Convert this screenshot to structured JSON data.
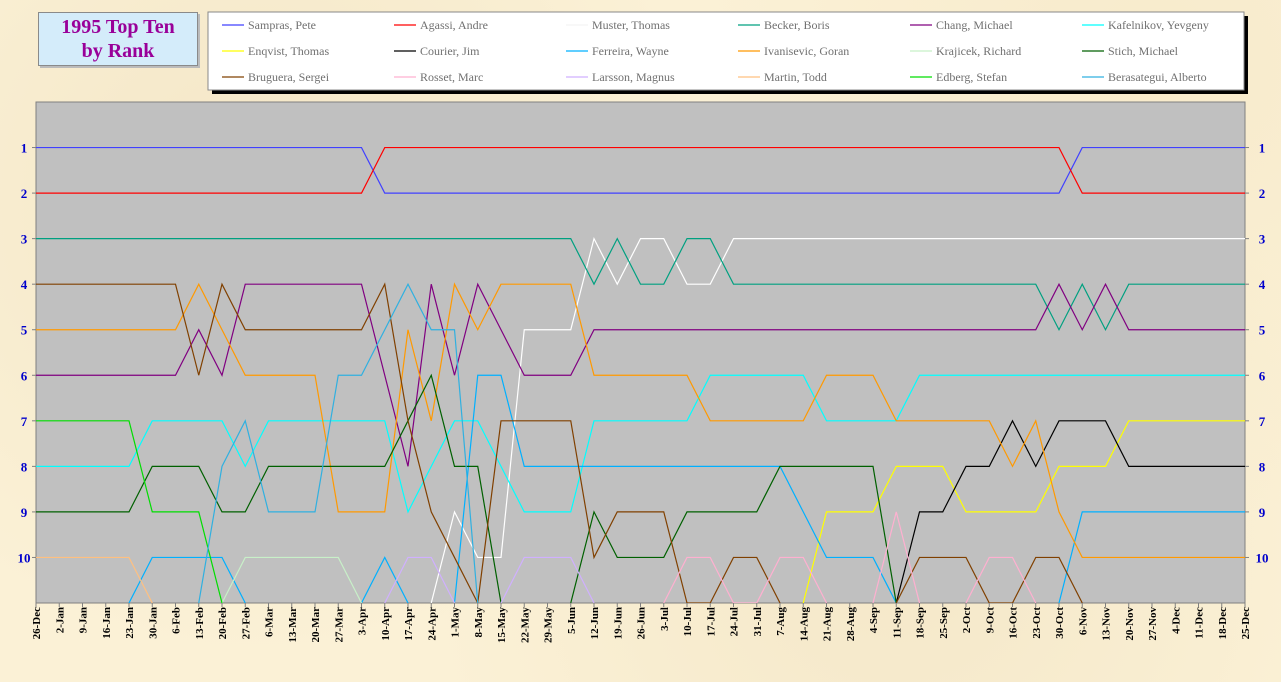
{
  "chart_data": {
    "type": "line",
    "title": "1995 Top Ten by Rank",
    "categories": [
      "26-Dec",
      "2-Jan",
      "9-Jan",
      "16-Jan",
      "23-Jan",
      "30-Jan",
      "6-Feb",
      "13-Feb",
      "20-Feb",
      "27-Feb",
      "6-Mar",
      "13-Mar",
      "20-Mar",
      "27-Mar",
      "3-Apr",
      "10-Apr",
      "17-Apr",
      "24-Apr",
      "1-May",
      "8-May",
      "15-May",
      "22-May",
      "29-May",
      "5-Jun",
      "12-Jun",
      "19-Jun",
      "26-Jun",
      "3-Jul",
      "10-Jul",
      "17-Jul",
      "24-Jul",
      "31-Jul",
      "7-Aug",
      "14-Aug",
      "21-Aug",
      "28-Aug",
      "4-Sep",
      "11-Sep",
      "18-Sep",
      "25-Sep",
      "2-Oct",
      "9-Oct",
      "16-Oct",
      "23-Oct",
      "30-Oct",
      "6-Nov",
      "13-Nov",
      "20-Nov",
      "27-Nov",
      "4-Dec",
      "11-Dec",
      "18-Dec",
      "25-Dec"
    ],
    "ylim": [
      0,
      11
    ],
    "y_inverted": true,
    "yticks": [
      1,
      2,
      3,
      4,
      5,
      6,
      7,
      8,
      9,
      10
    ],
    "series": [
      {
        "name": "Sampras, Pete",
        "color": "#4040ff",
        "values": [
          1,
          1,
          1,
          1,
          1,
          1,
          1,
          1,
          1,
          1,
          1,
          1,
          1,
          1,
          1,
          2,
          2,
          2,
          2,
          2,
          2,
          2,
          2,
          2,
          2,
          2,
          2,
          2,
          2,
          2,
          2,
          2,
          2,
          2,
          2,
          2,
          2,
          2,
          2,
          2,
          2,
          2,
          2,
          2,
          2,
          1,
          1,
          1,
          1,
          1,
          1,
          1,
          1
        ]
      },
      {
        "name": "Agassi, Andre",
        "color": "#ff0000",
        "values": [
          2,
          2,
          2,
          2,
          2,
          2,
          2,
          2,
          2,
          2,
          2,
          2,
          2,
          2,
          2,
          1,
          1,
          1,
          1,
          1,
          1,
          1,
          1,
          1,
          1,
          1,
          1,
          1,
          1,
          1,
          1,
          1,
          1,
          1,
          1,
          1,
          1,
          1,
          1,
          1,
          1,
          1,
          1,
          1,
          1,
          2,
          2,
          2,
          2,
          2,
          2,
          2,
          2
        ]
      },
      {
        "name": "Muster, Thomas",
        "color": "#ffffff",
        "values": [
          null,
          null,
          null,
          null,
          null,
          null,
          null,
          null,
          null,
          null,
          null,
          null,
          null,
          null,
          null,
          null,
          null,
          11,
          9,
          10,
          10,
          5,
          5,
          5,
          3,
          4,
          3,
          3,
          4,
          4,
          3,
          3,
          3,
          3,
          3,
          3,
          3,
          3,
          3,
          3,
          3,
          3,
          3,
          3,
          3,
          3,
          3,
          3,
          3,
          3,
          3,
          3,
          3
        ]
      },
      {
        "name": "Becker, Boris",
        "color": "#00a080",
        "values": [
          3,
          3,
          3,
          3,
          3,
          3,
          3,
          3,
          3,
          3,
          3,
          3,
          3,
          3,
          3,
          3,
          3,
          3,
          3,
          3,
          3,
          3,
          3,
          3,
          4,
          3,
          4,
          4,
          3,
          3,
          4,
          4,
          4,
          4,
          4,
          4,
          4,
          4,
          4,
          4,
          4,
          4,
          4,
          4,
          5,
          4,
          5,
          4,
          4,
          4,
          4,
          4,
          4
        ]
      },
      {
        "name": "Chang, Michael",
        "color": "#800080",
        "values": [
          6,
          6,
          6,
          6,
          6,
          6,
          6,
          5,
          6,
          4,
          4,
          4,
          4,
          4,
          4,
          6,
          8,
          4,
          6,
          4,
          5,
          6,
          6,
          6,
          5,
          5,
          5,
          5,
          5,
          5,
          5,
          5,
          5,
          5,
          5,
          5,
          5,
          5,
          5,
          5,
          5,
          5,
          5,
          5,
          4,
          5,
          4,
          5,
          5,
          5,
          5,
          5,
          5
        ]
      },
      {
        "name": "Kafelnikov, Yevgeny",
        "color": "#00ffff",
        "values": [
          8,
          8,
          8,
          8,
          8,
          7,
          7,
          7,
          7,
          8,
          7,
          7,
          7,
          7,
          7,
          7,
          9,
          8,
          7,
          7,
          8,
          9,
          9,
          9,
          7,
          7,
          7,
          7,
          7,
          6,
          6,
          6,
          6,
          6,
          7,
          7,
          7,
          7,
          6,
          6,
          6,
          6,
          6,
          6,
          6,
          6,
          6,
          6,
          6,
          6,
          6,
          6,
          6
        ]
      },
      {
        "name": "Enqvist, Thomas",
        "color": "#ffff00",
        "values": [
          null,
          null,
          null,
          null,
          null,
          null,
          null,
          null,
          null,
          null,
          null,
          null,
          null,
          null,
          null,
          null,
          null,
          null,
          null,
          null,
          null,
          null,
          null,
          null,
          null,
          null,
          null,
          null,
          null,
          null,
          null,
          null,
          null,
          11,
          9,
          9,
          9,
          8,
          8,
          8,
          9,
          9,
          9,
          9,
          8,
          8,
          8,
          7,
          7,
          7,
          7,
          7,
          7
        ]
      },
      {
        "name": "Courier, Jim",
        "color": "#000000",
        "values": [
          null,
          null,
          null,
          null,
          null,
          null,
          null,
          null,
          null,
          null,
          null,
          null,
          null,
          null,
          null,
          null,
          null,
          null,
          null,
          null,
          null,
          null,
          null,
          null,
          null,
          null,
          null,
          null,
          null,
          null,
          null,
          null,
          null,
          null,
          null,
          null,
          null,
          11,
          9,
          9,
          8,
          8,
          7,
          8,
          7,
          7,
          7,
          8,
          8,
          8,
          8,
          8,
          8
        ]
      },
      {
        "name": "Ferreira, Wayne",
        "color": "#00b0ff",
        "values": [
          null,
          null,
          null,
          null,
          11,
          10,
          10,
          10,
          10,
          11,
          null,
          null,
          null,
          null,
          11,
          10,
          11,
          null,
          11,
          6,
          6,
          8,
          8,
          8,
          8,
          8,
          8,
          8,
          8,
          8,
          8,
          8,
          8,
          9,
          10,
          10,
          10,
          11,
          null,
          null,
          null,
          null,
          null,
          null,
          11,
          9,
          9,
          9,
          9,
          9,
          9,
          9,
          9
        ]
      },
      {
        "name": "Ivanisevic, Goran",
        "color": "#ff9900",
        "values": [
          5,
          5,
          5,
          5,
          5,
          5,
          5,
          4,
          5,
          6,
          6,
          6,
          6,
          9,
          9,
          9,
          5,
          7,
          4,
          5,
          4,
          4,
          4,
          4,
          6,
          6,
          6,
          6,
          6,
          7,
          7,
          7,
          7,
          7,
          6,
          6,
          6,
          7,
          7,
          7,
          7,
          7,
          8,
          7,
          9,
          10,
          10,
          10,
          10,
          10,
          10,
          10,
          10
        ]
      },
      {
        "name": "Krajicek, Richard",
        "color": "#c8f0c8",
        "values": [
          null,
          null,
          null,
          null,
          null,
          null,
          null,
          null,
          11,
          10,
          10,
          10,
          10,
          10,
          11,
          null,
          null,
          null,
          null,
          null,
          null,
          null,
          null,
          null,
          null,
          null,
          null,
          null,
          null,
          null,
          null,
          null,
          null,
          null,
          null,
          null,
          null,
          null,
          null,
          null,
          null,
          null,
          null,
          null,
          null,
          null,
          null,
          null,
          null,
          null,
          null,
          null,
          null
        ]
      },
      {
        "name": "Stich, Michael",
        "color": "#006000",
        "values": [
          9,
          9,
          9,
          9,
          9,
          8,
          8,
          8,
          9,
          9,
          8,
          8,
          8,
          8,
          8,
          8,
          7,
          6,
          8,
          8,
          11,
          null,
          null,
          11,
          9,
          10,
          10,
          10,
          9,
          9,
          9,
          9,
          8,
          8,
          8,
          8,
          8,
          11,
          null,
          null,
          null,
          null,
          null,
          null,
          null,
          null,
          null,
          null,
          null,
          null,
          null,
          null,
          null
        ]
      },
      {
        "name": "Bruguera, Sergei",
        "color": "#804000",
        "values": [
          4,
          4,
          4,
          4,
          4,
          4,
          4,
          6,
          4,
          5,
          5,
          5,
          5,
          5,
          5,
          4,
          7,
          9,
          10,
          11,
          7,
          7,
          7,
          7,
          10,
          9,
          9,
          9,
          11,
          11,
          10,
          10,
          11,
          null,
          null,
          null,
          null,
          11,
          10,
          10,
          10,
          11,
          11,
          10,
          10,
          11,
          null,
          null,
          null,
          null,
          null,
          null,
          null
        ]
      },
      {
        "name": "Rosset, Marc",
        "color": "#ffb0d0",
        "values": [
          null,
          null,
          null,
          null,
          null,
          null,
          null,
          null,
          null,
          null,
          null,
          null,
          null,
          null,
          null,
          null,
          null,
          null,
          null,
          null,
          null,
          null,
          null,
          null,
          null,
          null,
          null,
          11,
          10,
          10,
          11,
          11,
          10,
          10,
          11,
          null,
          11,
          9,
          11,
          null,
          11,
          10,
          10,
          11,
          null,
          null,
          null,
          null,
          null,
          null,
          null,
          null,
          null
        ]
      },
      {
        "name": "Larsson, Magnus",
        "color": "#d0b0ff",
        "values": [
          null,
          null,
          null,
          null,
          null,
          null,
          null,
          null,
          null,
          null,
          null,
          null,
          null,
          null,
          null,
          11,
          10,
          10,
          11,
          null,
          11,
          10,
          10,
          10,
          11,
          null,
          null,
          null,
          null,
          null,
          null,
          null,
          null,
          null,
          null,
          null,
          null,
          null,
          null,
          null,
          null,
          null,
          null,
          null,
          null,
          null,
          null,
          null,
          null,
          null,
          null,
          null,
          null
        ]
      },
      {
        "name": "Martin, Todd",
        "color": "#ffc080",
        "values": [
          10,
          10,
          10,
          10,
          10,
          11,
          null,
          null,
          null,
          null,
          null,
          null,
          null,
          null,
          null,
          null,
          null,
          null,
          null,
          null,
          null,
          null,
          null,
          null,
          null,
          null,
          null,
          null,
          null,
          null,
          null,
          null,
          null,
          null,
          null,
          null,
          null,
          null,
          null,
          null,
          null,
          null,
          null,
          null,
          null,
          null,
          null,
          null,
          null,
          null,
          null,
          null,
          null
        ]
      },
      {
        "name": "Edberg, Stefan",
        "color": "#00dd00",
        "values": [
          7,
          7,
          7,
          7,
          7,
          9,
          9,
          9,
          11,
          null,
          null,
          null,
          null,
          null,
          null,
          null,
          null,
          null,
          null,
          null,
          null,
          null,
          null,
          null,
          null,
          null,
          null,
          null,
          null,
          null,
          null,
          null,
          null,
          null,
          null,
          null,
          null,
          null,
          null,
          null,
          null,
          null,
          null,
          null,
          null,
          null,
          null,
          null,
          null,
          null,
          null,
          null,
          null
        ]
      },
      {
        "name": "Berasategui, Alberto",
        "color": "#30b0e0",
        "values": [
          null,
          null,
          null,
          null,
          null,
          null,
          null,
          11,
          8,
          7,
          9,
          9,
          9,
          6,
          6,
          5,
          4,
          5,
          5,
          11,
          null,
          null,
          null,
          null,
          null,
          null,
          null,
          null,
          null,
          null,
          null,
          null,
          null,
          null,
          null,
          null,
          null,
          null,
          null,
          null,
          null,
          null,
          null,
          null,
          null,
          null,
          null,
          null,
          null,
          null,
          null,
          null,
          null
        ]
      }
    ]
  }
}
